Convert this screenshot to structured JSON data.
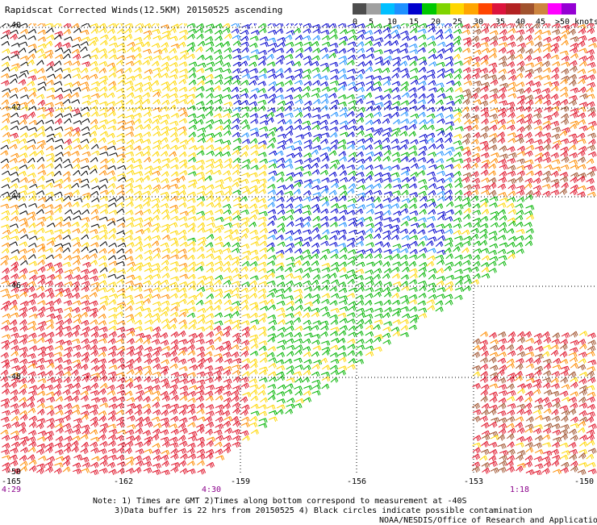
{
  "title": "Rapidscat Corrected Winds(12.5KM) 20150525 ascending",
  "legend": {
    "labels": [
      "0",
      "5",
      "10",
      "15",
      "20",
      "25",
      "30",
      "35",
      "40",
      "45",
      ">50 knots"
    ],
    "colors": [
      "#4d4d4d",
      "#a0a0a0",
      "#00bfff",
      "#1e90ff",
      "#0000cd",
      "#00c800",
      "#7fd400",
      "#ffd700",
      "#ffa500",
      "#ff4500",
      "#dc143c",
      "#b22222",
      "#a0522d",
      "#cd853f",
      "#ff00ff",
      "#9400d3"
    ]
  },
  "lat_labels": [
    "-40",
    "-42",
    "-44",
    "-46",
    "-48",
    "-50"
  ],
  "lon_labels": [
    "-165",
    "-162",
    "-159",
    "-156",
    "-153",
    "-150"
  ],
  "time_labels": [
    "4:29",
    "4:30",
    "1:18"
  ],
  "notes": [
    "Note: 1) Times are GMT 2)Times along bottom correspond to measurement at -40S",
    "3)Data buffer is 22 hrs from 20150525 4) Black circles indicate possible contamination",
    "NOAA/NESDIS/Office of Research and Applications"
  ],
  "wind_colors": {
    "calm": "#000000",
    "light_blue": "#1e90ff",
    "blue": "#0000cd",
    "green": "#00b400",
    "yellow": "#ffd700",
    "orange": "#ff8c00",
    "red": "#e0142a",
    "brown": "#a0522d"
  }
}
